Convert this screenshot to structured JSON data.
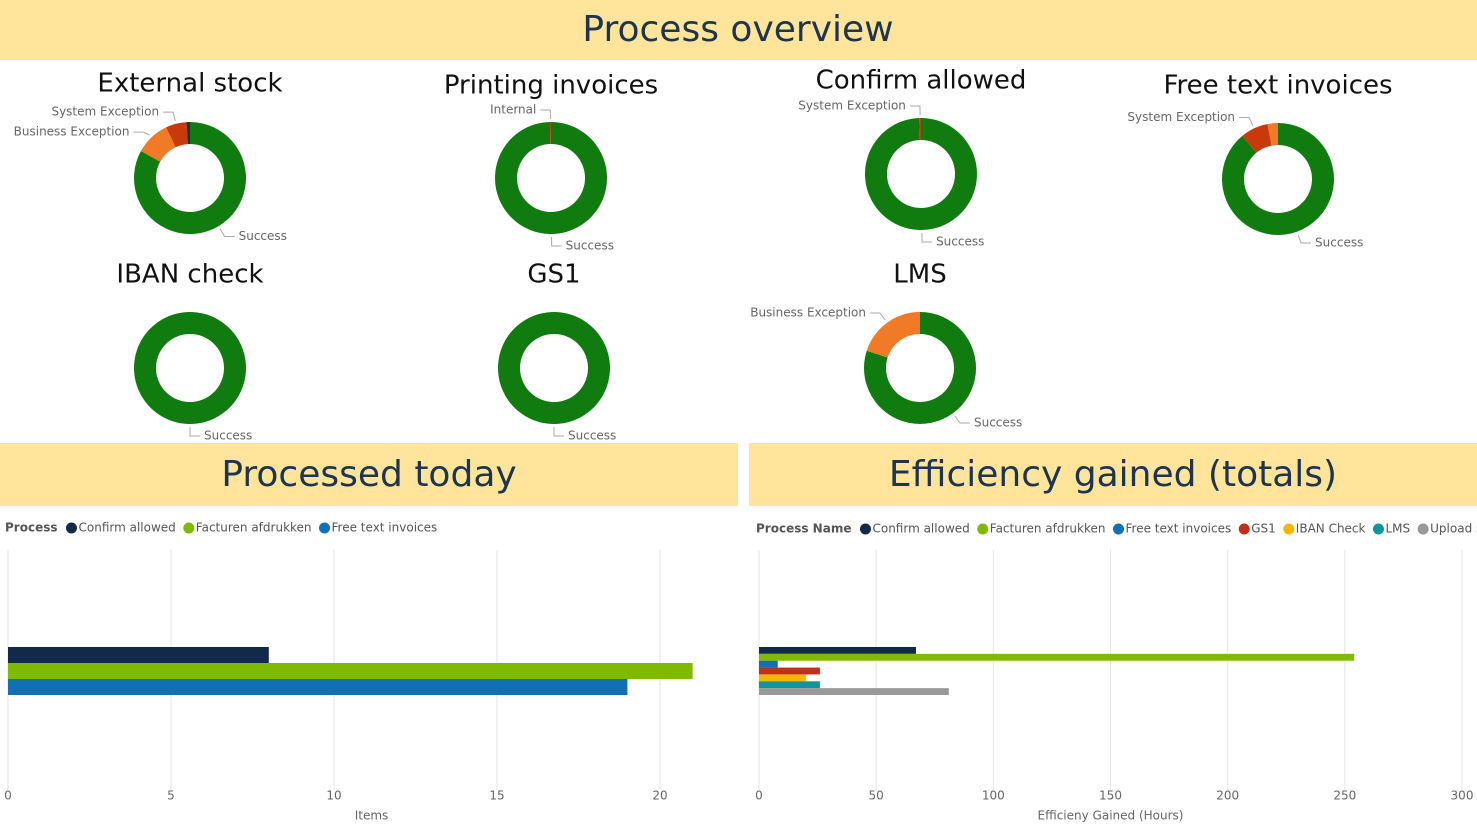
{
  "header": {
    "title": "Process overview"
  },
  "chart_data": [
    {
      "type": "donut",
      "title": "External stock",
      "categories": [
        "Success",
        "Business Exception",
        "System Exception",
        null
      ],
      "values": [
        83,
        10,
        6,
        1
      ],
      "colors": [
        "#107c10",
        "#f07a25",
        "#c83a0b",
        "#1d2e4a"
      ]
    },
    {
      "type": "donut",
      "title": "Printing invoices",
      "categories": [
        "Success",
        "Internal"
      ],
      "values": [
        99.7,
        0.3
      ],
      "colors": [
        "#107c10",
        "#c83a0b"
      ]
    },
    {
      "type": "donut",
      "title": "Confirm allowed",
      "categories": [
        "Success",
        "System Exception"
      ],
      "values": [
        99.5,
        0.5
      ],
      "colors": [
        "#107c10",
        "#c83a0b"
      ]
    },
    {
      "type": "donut",
      "title": "Free text invoices",
      "categories": [
        "Success",
        "System Exception",
        null
      ],
      "values": [
        89,
        8,
        3
      ],
      "colors": [
        "#107c10",
        "#c83a0b",
        "#f07a25"
      ]
    },
    {
      "type": "donut",
      "title": "IBAN check",
      "categories": [
        "Success"
      ],
      "values": [
        100
      ],
      "colors": [
        "#107c10"
      ]
    },
    {
      "type": "donut",
      "title": "GS1",
      "categories": [
        "Success"
      ],
      "values": [
        100
      ],
      "colors": [
        "#107c10"
      ]
    },
    {
      "type": "donut",
      "title": "LMS",
      "categories": [
        "Success",
        "Business Exception"
      ],
      "values": [
        80,
        20
      ],
      "colors": [
        "#107c10",
        "#f07a25"
      ]
    },
    {
      "type": "bar",
      "orientation": "horizontal",
      "title": "Processed today",
      "legend_title": "Process",
      "categories": [
        null
      ],
      "series": [
        {
          "name": "Confirm allowed",
          "color": "#12294a",
          "values": [
            8
          ]
        },
        {
          "name": "Facturen afdrukken",
          "color": "#7fba00",
          "values": [
            21
          ]
        },
        {
          "name": "Free text invoices",
          "color": "#1170b5",
          "values": [
            19
          ]
        }
      ],
      "xlim": [
        0,
        22.3
      ],
      "xticks": [
        0,
        5,
        10,
        15,
        20
      ],
      "xlabel": "Items",
      "grid": true
    },
    {
      "type": "bar",
      "orientation": "horizontal",
      "title": "Efficiency gained (totals)",
      "legend_title": "Process Name",
      "categories": [
        null
      ],
      "series": [
        {
          "name": "Confirm allowed",
          "color": "#12294a",
          "values": [
            67
          ]
        },
        {
          "name": "Facturen afdrukken",
          "color": "#7fba00",
          "values": [
            254
          ]
        },
        {
          "name": "Free text invoices",
          "color": "#1170b5",
          "values": [
            8
          ]
        },
        {
          "name": "GS1",
          "color": "#c0311c",
          "values": [
            26
          ]
        },
        {
          "name": "IBAN Check",
          "color": "#f5b800",
          "values": [
            20
          ]
        },
        {
          "name": "LMS",
          "color": "#11949b",
          "values": [
            26
          ]
        },
        {
          "name": "Upload stock ext...",
          "color": "#999999",
          "values": [
            81
          ]
        }
      ],
      "xlim": [
        0,
        300
      ],
      "xticks": [
        0,
        50,
        100,
        150,
        200,
        250,
        300
      ],
      "xlabel": "Efficieny Gained (Hours)",
      "grid": true
    }
  ]
}
